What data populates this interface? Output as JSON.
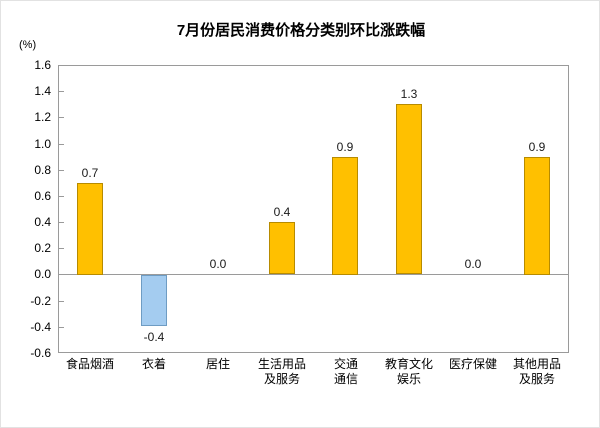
{
  "page": {
    "background": "#ffffff",
    "frame_border": "#e2e2e2"
  },
  "chart_data": {
    "type": "bar",
    "title": "7月份居民消费价格分类别环比涨跌幅",
    "unit_label": "(%)",
    "xlabel": "",
    "ylabel": "(%)",
    "categories": [
      "食品烟酒",
      "衣着",
      "居住",
      "生活用品及服务",
      "交通通信",
      "教育文化娱乐",
      "医疗保健",
      "其他用品及服务"
    ],
    "category_lines": [
      [
        "食品烟酒"
      ],
      [
        "衣着"
      ],
      [
        "居住"
      ],
      [
        "生活用品",
        "及服务"
      ],
      [
        "交通",
        "通信"
      ],
      [
        "教育文化",
        "娱乐"
      ],
      [
        "医疗保健"
      ],
      [
        "其他用品",
        "及服务"
      ]
    ],
    "values": [
      0.7,
      -0.4,
      0.0,
      0.4,
      0.9,
      1.3,
      0.0,
      0.9
    ],
    "value_labels": [
      "0.7",
      "-0.4",
      "0.0",
      "0.4",
      "0.9",
      "1.3",
      "0.0",
      "0.9"
    ],
    "y_ticks": [
      "1.6",
      "1.4",
      "1.2",
      "1.0",
      "0.8",
      "0.6",
      "0.4",
      "0.2",
      "0.0",
      "-0.2",
      "-0.4",
      "-0.6"
    ],
    "ylim": [
      -0.6,
      1.6
    ],
    "y_step": 0.2,
    "grid": false,
    "legend": "none",
    "colors": {
      "positive_fill": "#FFC000",
      "positive_border": "#B78B00",
      "negative_fill": "#A4CCF0",
      "negative_border": "#6E9CC3",
      "axis": "#9a9a9a",
      "text": "#000000",
      "value_text": "#1a1a1a"
    }
  }
}
